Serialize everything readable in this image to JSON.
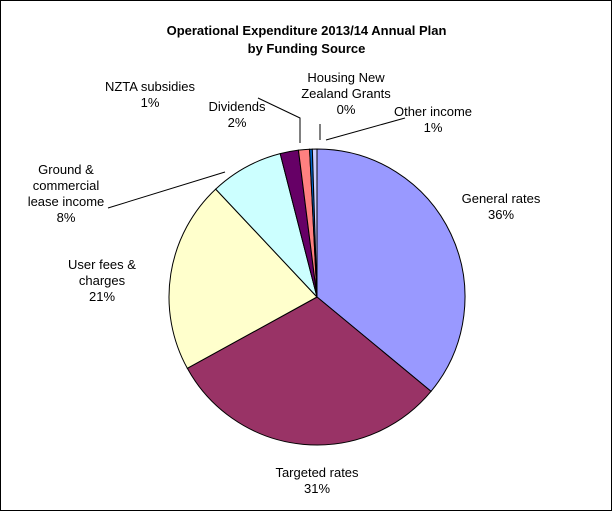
{
  "chart_data": {
    "type": "pie",
    "title_lines": [
      "Operational Expenditure 2013/14 Annual Plan",
      "by Funding Source"
    ],
    "start_angle_deg": 0,
    "slices": [
      {
        "key": "general_rates",
        "label_lines": [
          "General rates",
          "36%"
        ],
        "value": 36,
        "color": "#9999ff"
      },
      {
        "key": "targeted_rates",
        "label_lines": [
          "Targeted rates",
          "31%"
        ],
        "value": 31,
        "color": "#993366"
      },
      {
        "key": "user_fees",
        "label_lines": [
          "User fees &",
          "charges",
          "21%"
        ],
        "value": 21,
        "color": "#ffffcc"
      },
      {
        "key": "ground_lease",
        "label_lines": [
          "Ground &",
          "commercial",
          "lease income",
          "8%"
        ],
        "value": 8,
        "color": "#ccffff"
      },
      {
        "key": "dividends",
        "label_lines": [
          "Dividends",
          "2%"
        ],
        "value": 2,
        "color": "#660066"
      },
      {
        "key": "nzta",
        "label_lines": [
          "NZTA subsidies",
          "1%"
        ],
        "value": 1.2,
        "color": "#ff8080"
      },
      {
        "key": "hnz_grants",
        "label_lines": [
          "Housing New",
          "Zealand Grants",
          "0%"
        ],
        "value": 0.3,
        "color": "#0066cc"
      },
      {
        "key": "other_income",
        "label_lines": [
          "Other income",
          "1%"
        ],
        "value": 0.5,
        "color": "#ccccff"
      }
    ]
  }
}
